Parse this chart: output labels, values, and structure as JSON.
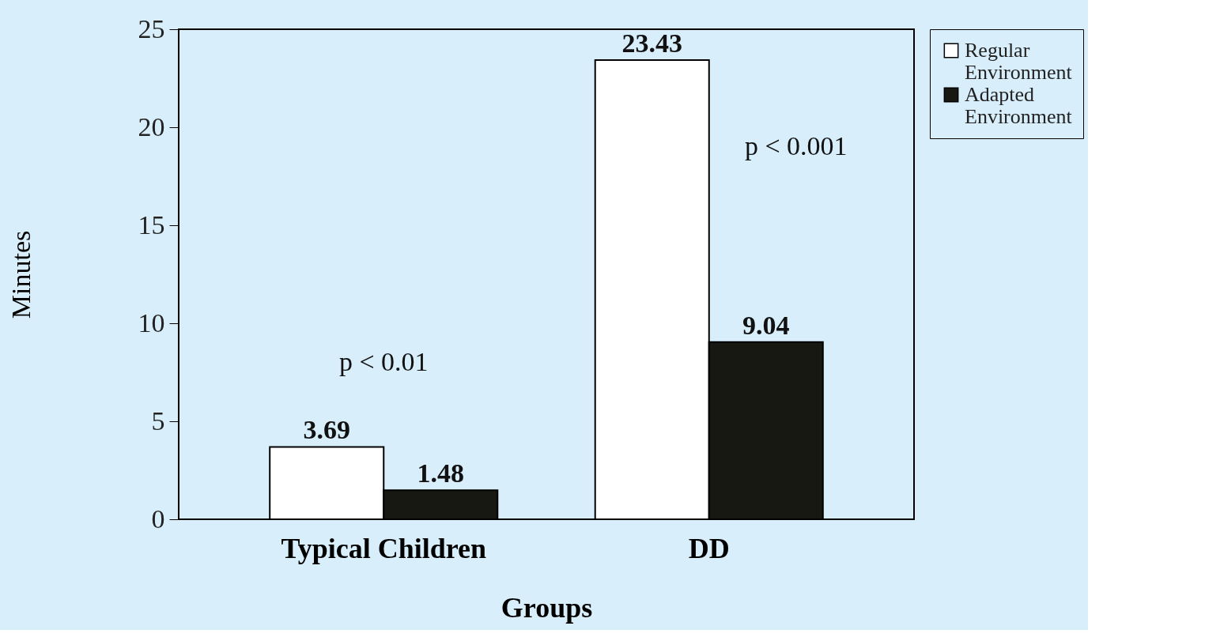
{
  "chart_data": {
    "type": "bar",
    "xlabel": "Groups",
    "ylabel": "Minutes",
    "categories": [
      "Typical Children",
      "DD"
    ],
    "series": [
      {
        "name": "Regular Environment",
        "color": "#ffffff",
        "values": [
          3.69,
          23.43
        ]
      },
      {
        "name": "Adapted Environment",
        "color": "#181813",
        "values": [
          1.48,
          9.04
        ]
      }
    ],
    "ylim": [
      0,
      25
    ],
    "yticks": [
      0,
      5,
      10,
      15,
      20,
      25
    ],
    "grid": false,
    "legend": "right",
    "data_labels": true,
    "annotations": [
      "p < 0.01",
      "p < 0.001"
    ]
  }
}
